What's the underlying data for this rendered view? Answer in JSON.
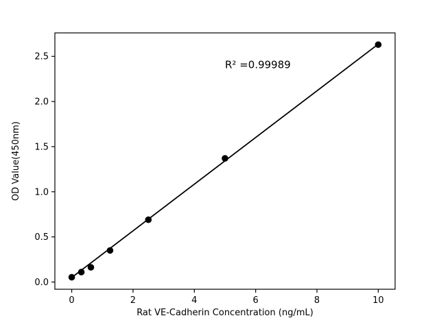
{
  "figure": {
    "background": "#ffffff"
  },
  "chart_data": {
    "type": "scatter",
    "title": "",
    "xlabel": "Rat VE-Cadherin Concentration (ng/mL)",
    "ylabel": "OD Value(450nm)",
    "points": [
      {
        "x": 0,
        "y": 0.053
      },
      {
        "x": 0.3125,
        "y": 0.11
      },
      {
        "x": 0.625,
        "y": 0.163
      },
      {
        "x": 1.25,
        "y": 0.35
      },
      {
        "x": 2.5,
        "y": 0.69
      },
      {
        "x": 5,
        "y": 1.37
      },
      {
        "x": 10,
        "y": 2.63
      }
    ],
    "fit_line": {
      "x1": 0,
      "y1": 0.05,
      "x2": 10,
      "y2": 2.635
    },
    "annotation": {
      "text": "R² =0.99989",
      "x": 5.0,
      "y": 2.37
    },
    "x_ticks": [
      0,
      2,
      4,
      6,
      8,
      10
    ],
    "y_ticks": [
      0.0,
      0.5,
      1.0,
      1.5,
      2.0,
      2.5
    ],
    "xlim": [
      -0.55,
      10.55
    ],
    "ylim": [
      -0.08,
      2.76
    ],
    "grid": false,
    "legend": null,
    "marker_color": "#000000",
    "line_color": "#000000",
    "axis_color": "#000000"
  }
}
